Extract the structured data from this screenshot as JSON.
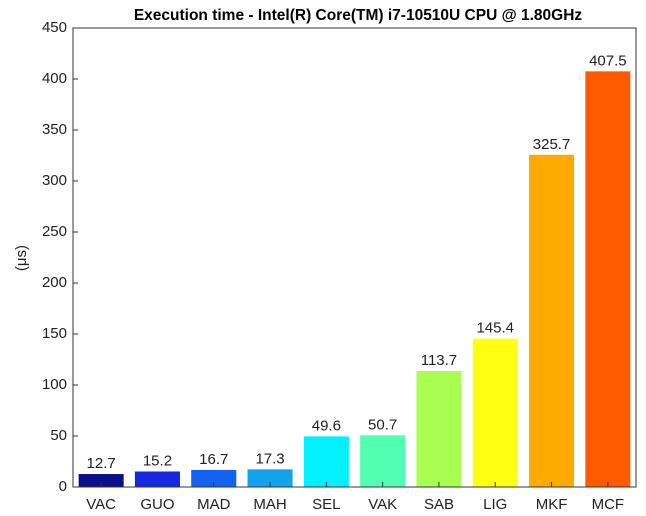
{
  "chart_data": {
    "type": "bar",
    "title": "Execution time - Intel(R) Core(TM) i7-10510U CPU @ 1.80GHz",
    "ylabel": "(μs)",
    "categories": [
      "VAC",
      "GUO",
      "MAD",
      "MAH",
      "SEL",
      "VAK",
      "SAB",
      "LIG",
      "MKF",
      "MCF"
    ],
    "values": [
      12.7,
      15.2,
      16.7,
      17.3,
      49.6,
      50.7,
      113.7,
      145.4,
      325.7,
      407.5
    ],
    "colors": [
      "#0b0f8c",
      "#1428e0",
      "#1462f0",
      "#12a2ee",
      "#00f0ff",
      "#52ffb2",
      "#a8ff52",
      "#ffff12",
      "#ffaa00",
      "#ff5a00"
    ],
    "ylim": [
      0,
      450
    ],
    "yticks": [
      0,
      50,
      100,
      150,
      200,
      250,
      300,
      350,
      400,
      450
    ],
    "grid": false
  }
}
